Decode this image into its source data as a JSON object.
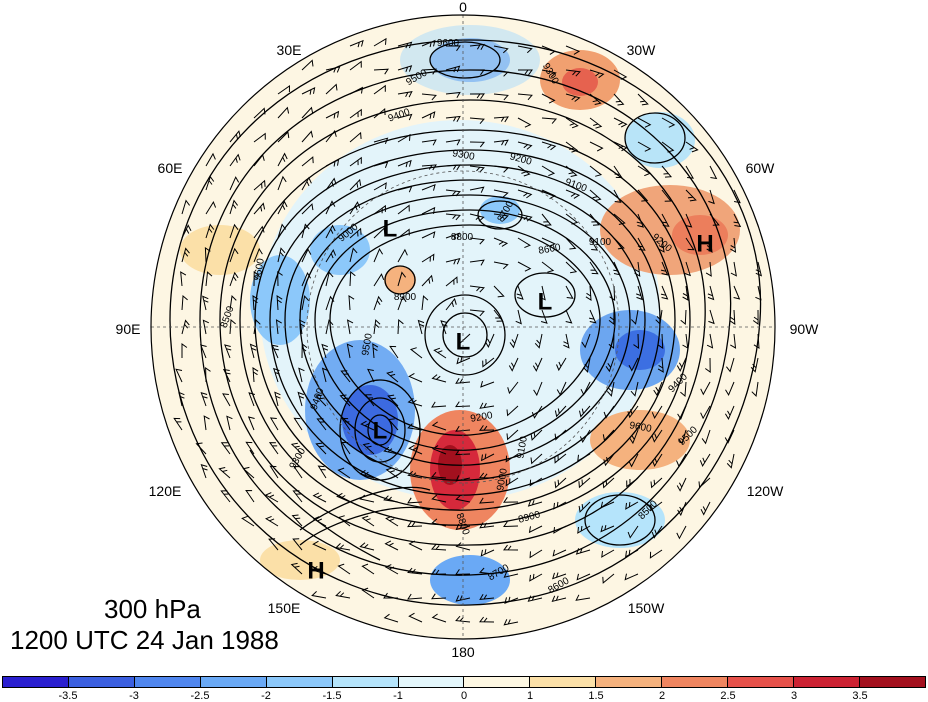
{
  "map": {
    "pressure_level": "300 hPa",
    "valid_time": "1200 UTC 24 Jan 1988",
    "projection": "north polar stereographic",
    "longitude_labels": {
      "top": "0",
      "top_right": "30W",
      "right_upper": "60W",
      "right": "90W",
      "right_lower": "120W",
      "bottom_right": "150W",
      "bottom": "180",
      "bottom_left": "150E",
      "left_lower": "120E",
      "left": "90E",
      "left_upper": "60E",
      "top_left": "30E"
    },
    "pressure_centers": [
      {
        "type": "L",
        "label": "L"
      },
      {
        "type": "L",
        "label": "L"
      },
      {
        "type": "L",
        "label": "L"
      },
      {
        "type": "L",
        "label": "L"
      },
      {
        "type": "H",
        "label": "H"
      },
      {
        "type": "H",
        "label": "H"
      }
    ],
    "contour_labels": [
      "9600",
      "9500",
      "9400",
      "9300",
      "9200",
      "9100",
      "9000",
      "8900",
      "8800",
      "8700",
      "8600",
      "8500"
    ],
    "colorbar": {
      "ticks": [
        "-3.5",
        "-3",
        "-2.5",
        "-2",
        "-1.5",
        "-1",
        "0",
        "1",
        "1.5",
        "2",
        "2.5",
        "3",
        "3.5"
      ],
      "colors": [
        "#2a1fd0",
        "#3b5fe0",
        "#4f86ee",
        "#6aa9f5",
        "#8cc8fa",
        "#b5e4fb",
        "#e3f6fb",
        "#fdf7e2",
        "#fbe0a8",
        "#f5b27e",
        "#ef8560",
        "#e6514a",
        "#cc2233",
        "#a3101e"
      ]
    }
  }
}
